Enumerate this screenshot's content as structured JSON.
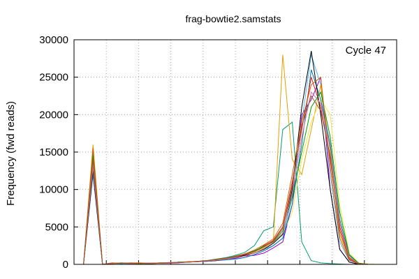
{
  "chart_data": {
    "type": "line",
    "title": "frag-bowtie2.samstats",
    "xlabel": "",
    "ylabel": "Frequency (fwd reads)",
    "annotation": "Cycle 47",
    "ylim": [
      0,
      30000
    ],
    "yticks": [
      "0",
      "5000",
      "10000",
      "15000",
      "20000",
      "25000",
      "30000"
    ],
    "xlim": [
      0,
      34
    ],
    "grid": true,
    "x": [
      0,
      1,
      2,
      3,
      4,
      5,
      6,
      7,
      8,
      9,
      10,
      11,
      12,
      13,
      14,
      15,
      16,
      17,
      18,
      19,
      20,
      21,
      22,
      23,
      24,
      25,
      26,
      27,
      28,
      29,
      30,
      31,
      32,
      33,
      34
    ],
    "series": [
      {
        "color": "#9400d3",
        "values": [
          0,
          0,
          14000,
          0,
          200,
          150,
          200,
          150,
          100,
          150,
          150,
          200,
          300,
          350,
          400,
          500,
          700,
          800,
          1100,
          1200,
          1500,
          2200,
          3000,
          8000,
          20000,
          22000,
          25000,
          10000,
          2000,
          300,
          50,
          0,
          0,
          0,
          0
        ]
      },
      {
        "color": "#009e73",
        "values": [
          0,
          0,
          15000,
          0,
          150,
          200,
          150,
          150,
          150,
          200,
          200,
          250,
          300,
          400,
          500,
          700,
          900,
          1200,
          1600,
          2500,
          4500,
          5000,
          18000,
          19000,
          3000,
          500,
          200,
          100,
          50,
          0,
          0,
          0,
          0,
          0,
          0
        ]
      },
      {
        "color": "#56b4e9",
        "values": [
          0,
          0,
          13500,
          0,
          150,
          150,
          100,
          150,
          150,
          150,
          200,
          300,
          300,
          400,
          500,
          600,
          700,
          900,
          1200,
          1500,
          2000,
          2500,
          3500,
          9000,
          19000,
          28000,
          24000,
          12000,
          3000,
          500,
          100,
          0,
          0,
          0,
          0
        ]
      },
      {
        "color": "#e69f00",
        "values": [
          0,
          0,
          16000,
          0,
          200,
          150,
          200,
          200,
          100,
          150,
          250,
          300,
          350,
          400,
          500,
          600,
          800,
          1000,
          1300,
          1800,
          2200,
          3000,
          28000,
          14000,
          12000,
          18000,
          24000,
          15000,
          4000,
          800,
          100,
          0,
          0,
          0,
          0
        ]
      },
      {
        "color": "#f0e442",
        "values": [
          0,
          0,
          12500,
          0,
          100,
          150,
          150,
          100,
          150,
          150,
          200,
          250,
          300,
          350,
          450,
          600,
          800,
          900,
          1200,
          1600,
          2200,
          3000,
          4000,
          7000,
          14000,
          19000,
          22000,
          20000,
          8000,
          1500,
          200,
          50,
          0,
          0,
          0
        ]
      },
      {
        "color": "#0072b2",
        "values": [
          0,
          0,
          12000,
          0,
          150,
          100,
          150,
          150,
          100,
          200,
          200,
          300,
          300,
          350,
          400,
          500,
          600,
          700,
          900,
          1300,
          1800,
          2500,
          3500,
          8000,
          16000,
          26000,
          22000,
          16000,
          6000,
          1200,
          150,
          0,
          0,
          0,
          0
        ]
      },
      {
        "color": "#e51e10",
        "values": [
          0,
          0,
          13000,
          0,
          150,
          150,
          100,
          100,
          150,
          200,
          200,
          250,
          350,
          400,
          500,
          600,
          700,
          1000,
          1300,
          1700,
          2500,
          3200,
          5000,
          11000,
          18000,
          25000,
          21000,
          14000,
          5000,
          900,
          100,
          0,
          0,
          0,
          0
        ]
      },
      {
        "color": "#000000",
        "values": [
          0,
          0,
          12500,
          0,
          150,
          150,
          150,
          150,
          150,
          150,
          200,
          250,
          300,
          350,
          450,
          500,
          700,
          900,
          1200,
          1500,
          2000,
          2800,
          4000,
          10000,
          21000,
          28500,
          20000,
          10000,
          2000,
          300,
          0,
          0,
          0,
          0,
          0
        ]
      },
      {
        "color": "#00a000",
        "values": [
          0,
          0,
          14500,
          0,
          150,
          200,
          150,
          100,
          150,
          150,
          200,
          300,
          300,
          400,
          500,
          700,
          800,
          1000,
          1400,
          1800,
          2400,
          3000,
          4500,
          9000,
          15000,
          21000,
          23000,
          17000,
          7000,
          1300,
          150,
          0,
          0,
          0,
          0
        ]
      },
      {
        "color": "#d55e00",
        "values": [
          0,
          0,
          15500,
          0,
          200,
          150,
          150,
          200,
          150,
          200,
          200,
          250,
          350,
          400,
          500,
          600,
          800,
          1100,
          1400,
          1900,
          2600,
          3400,
          5500,
          12000,
          19000,
          24000,
          25000,
          13000,
          3500,
          600,
          50,
          0,
          0,
          0,
          0
        ]
      },
      {
        "color": "#cc79a7",
        "values": [
          0,
          0,
          13000,
          0,
          150,
          150,
          100,
          150,
          150,
          150,
          250,
          250,
          300,
          350,
          450,
          550,
          700,
          900,
          1100,
          1500,
          2100,
          2900,
          4200,
          9500,
          17000,
          23000,
          21500,
          15500,
          5500,
          1000,
          100,
          0,
          0,
          0,
          0
        ]
      },
      {
        "color": "#a0522d",
        "values": [
          0,
          0,
          14000,
          0,
          100,
          150,
          150,
          150,
          100,
          150,
          200,
          250,
          300,
          400,
          500,
          650,
          850,
          1050,
          1350,
          1700,
          2300,
          3100,
          4800,
          10500,
          18500,
          22500,
          20500,
          14500,
          4500,
          700,
          80,
          0,
          0,
          0,
          0
        ]
      }
    ]
  }
}
